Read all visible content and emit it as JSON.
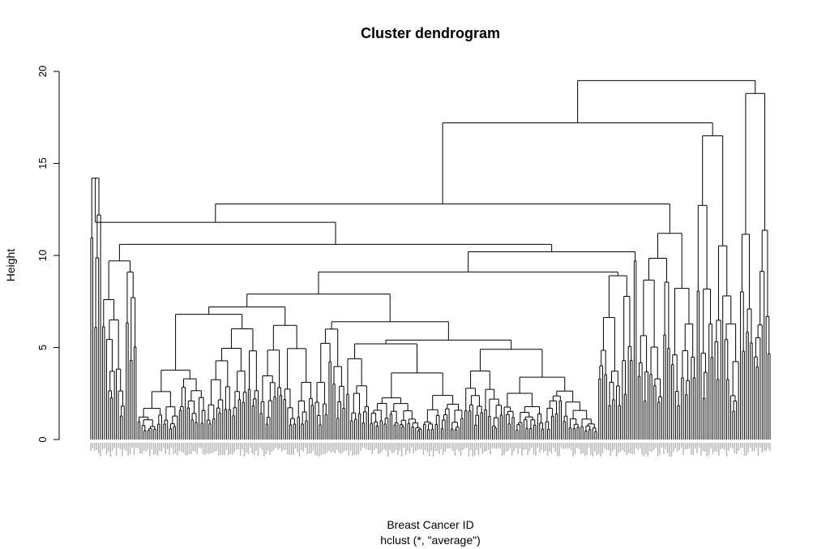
{
  "chart_data": {
    "type": "dendrogram",
    "title": "Cluster dendrogram",
    "xlabel": "Breast Cancer ID",
    "sub": "hclust (*, \"average\")",
    "ylabel": "Height",
    "ylim": [
      0,
      20
    ],
    "yticks": [
      0,
      5,
      10,
      15,
      20
    ],
    "leaf_count": 340,
    "merge_heights_top": [
      19.5,
      17.2,
      12.8,
      11.8,
      10.6,
      10.2,
      9.7,
      9.1,
      7.9,
      7.2,
      6.8,
      6.2,
      5.9,
      5.8,
      5.6,
      5.4,
      5.2,
      5.0,
      4.9,
      4.4,
      4.3,
      4.1,
      3.8
    ]
  }
}
